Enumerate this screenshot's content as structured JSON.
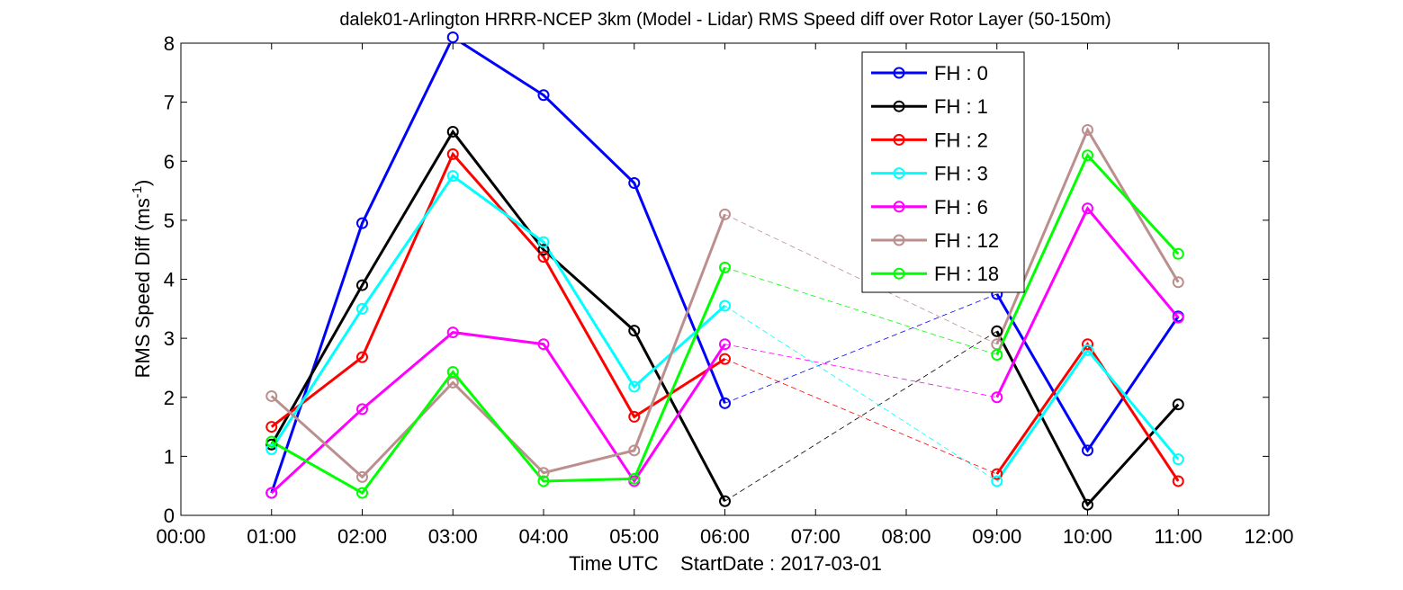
{
  "chart_data": {
    "type": "line",
    "title": "dalek01-Arlington HRRR-NCEP 3km (Model - Lidar) RMS Speed diff over Rotor Layer (50-150m)",
    "xlabel": "Time UTC    StartDate : 2017-03-01",
    "ylabel_main": "RMS Speed Diff (ms",
    "ylabel_sup": "-1",
    "ylabel_close": ")",
    "xlim": [
      0,
      12
    ],
    "ylim": [
      0,
      8
    ],
    "x_ticks": [
      0,
      1,
      2,
      3,
      4,
      5,
      6,
      7,
      8,
      9,
      10,
      11,
      12
    ],
    "x_tick_labels": [
      "00:00",
      "01:00",
      "02:00",
      "03:00",
      "04:00",
      "05:00",
      "06:00",
      "07:00",
      "08:00",
      "09:00",
      "10:00",
      "11:00",
      "12:00"
    ],
    "y_ticks": [
      0,
      1,
      2,
      3,
      4,
      5,
      6,
      7,
      8
    ],
    "y_tick_labels": [
      "0",
      "1",
      "2",
      "3",
      "4",
      "5",
      "6",
      "7",
      "8"
    ],
    "legend_position": "top-right",
    "series": [
      {
        "name": "FH : 0",
        "color": "#0000ff",
        "x": [
          1,
          2,
          3,
          4,
          5,
          6,
          9,
          10,
          11
        ],
        "values": [
          0.38,
          4.95,
          8.1,
          7.12,
          5.63,
          1.9,
          3.75,
          1.1,
          3.37
        ]
      },
      {
        "name": "FH : 1",
        "color": "#000000",
        "x": [
          1,
          2,
          3,
          4,
          5,
          6,
          9,
          10,
          11
        ],
        "values": [
          1.2,
          3.9,
          6.5,
          4.5,
          3.13,
          0.24,
          3.12,
          0.18,
          1.88
        ]
      },
      {
        "name": "FH : 2",
        "color": "#ff0000",
        "x": [
          1,
          2,
          3,
          4,
          5,
          6,
          9,
          10,
          11
        ],
        "values": [
          1.5,
          2.68,
          6.12,
          4.38,
          1.67,
          2.65,
          0.7,
          2.9,
          0.58
        ]
      },
      {
        "name": "FH : 3",
        "color": "#00ffff",
        "x": [
          1,
          2,
          3,
          4,
          5,
          6,
          9,
          10,
          11
        ],
        "values": [
          1.12,
          3.5,
          5.75,
          4.63,
          2.18,
          3.55,
          0.58,
          2.8,
          0.95
        ]
      },
      {
        "name": "FH : 6",
        "color": "#ff00ff",
        "x": [
          1,
          2,
          3,
          4,
          5,
          6,
          9,
          10,
          11
        ],
        "values": [
          0.38,
          1.8,
          3.1,
          2.9,
          0.58,
          2.9,
          2.0,
          5.2,
          3.35
        ]
      },
      {
        "name": "FH : 12",
        "color": "#bc8f8f",
        "x": [
          1,
          2,
          3,
          4,
          5,
          6,
          9,
          10,
          11
        ],
        "values": [
          2.02,
          0.65,
          2.25,
          0.72,
          1.1,
          5.1,
          2.9,
          6.53,
          3.95
        ]
      },
      {
        "name": "FH : 18",
        "color": "#00ff00",
        "x": [
          1,
          2,
          3,
          4,
          5,
          6,
          9,
          10,
          11
        ],
        "values": [
          1.25,
          0.38,
          2.43,
          0.58,
          0.62,
          4.2,
          2.72,
          6.1,
          4.43
        ]
      }
    ],
    "dashed_gap": {
      "from_x": 6,
      "to_x": 9
    }
  }
}
